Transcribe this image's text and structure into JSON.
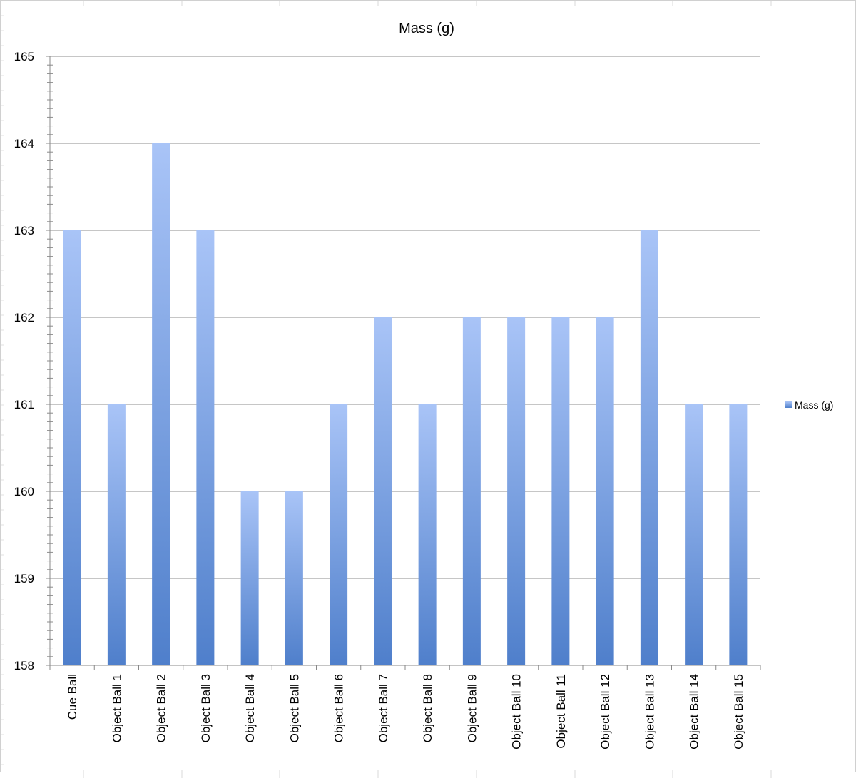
{
  "chart_data": {
    "type": "bar",
    "title": "Mass (g)",
    "xlabel": "",
    "ylabel": "",
    "categories": [
      "Cue Ball",
      "Object Ball 1",
      "Object Ball 2",
      "Object Ball 3",
      "Object Ball 4",
      "Object Ball 5",
      "Object Ball 6",
      "Object Ball 7",
      "Object Ball 8",
      "Object Ball 9",
      "Object Ball 10",
      "Object Ball 11",
      "Object Ball 12",
      "Object Ball 13",
      "Object Ball 14",
      "Object Ball 15"
    ],
    "series": [
      {
        "name": "Mass (g)",
        "values": [
          163,
          161,
          164,
          163,
          160,
          160,
          161,
          162,
          161,
          162,
          162,
          162,
          162,
          163,
          161,
          161
        ],
        "color_top": "#a9c4f7",
        "color_bottom": "#4f7fcb"
      }
    ],
    "ylim": [
      158,
      165
    ],
    "yticks": [
      158,
      159,
      160,
      161,
      162,
      163,
      164,
      165
    ],
    "grid": true,
    "legend": "right"
  }
}
